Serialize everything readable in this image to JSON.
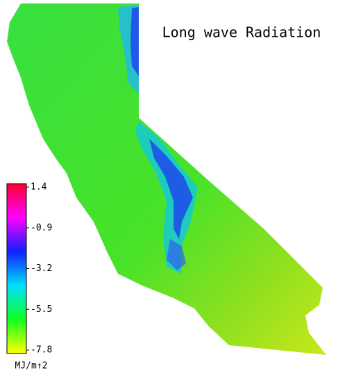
{
  "map": {
    "title": "Long wave Radiation",
    "colorbar": {
      "range": [
        -7.8,
        1.4
      ],
      "ticks": [
        1.4,
        -0.9,
        -3.2,
        -5.5,
        -7.8
      ],
      "unit": "MJ/m↑2",
      "colors": [
        "#ff0030",
        "#ff00ff",
        "#1020ff",
        "#00e0ff",
        "#10ff20",
        "#ffff00"
      ]
    }
  }
}
